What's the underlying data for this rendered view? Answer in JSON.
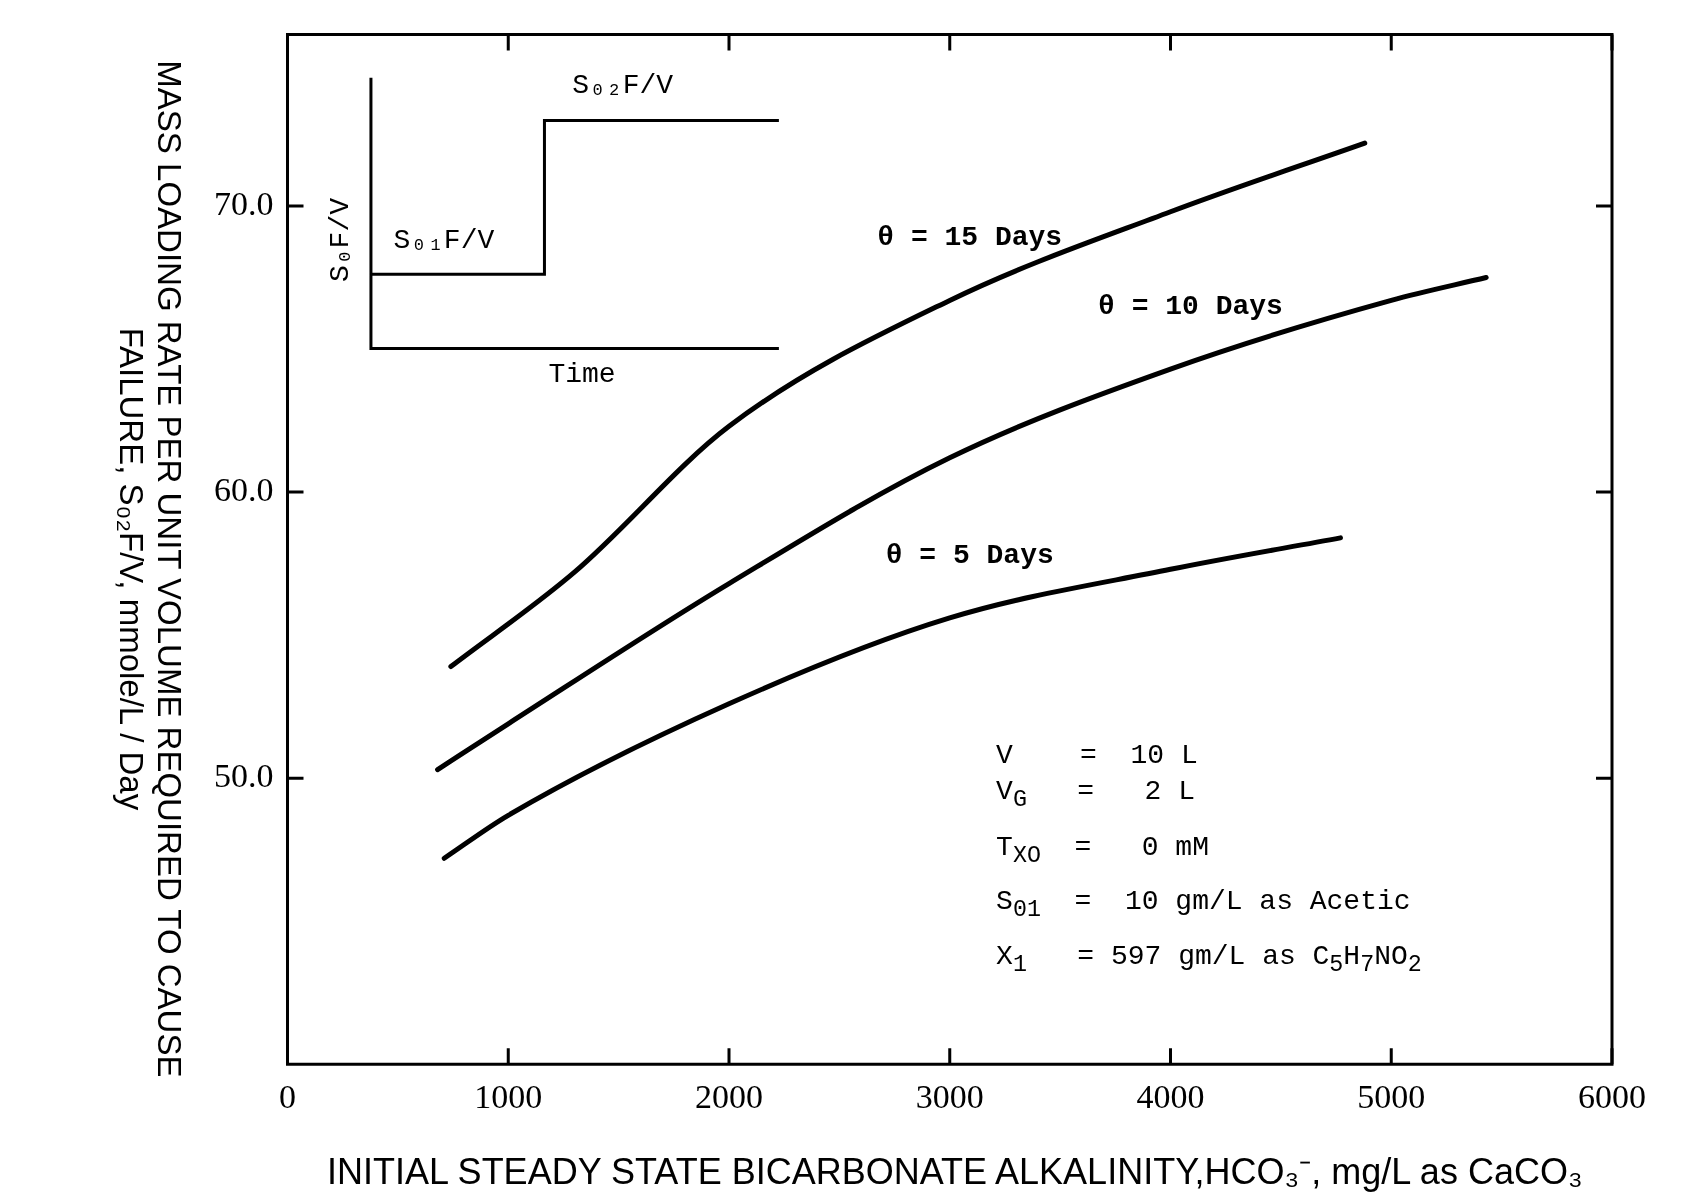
{
  "chart_data": {
    "type": "line",
    "xlabel": "INITIAL STEADY STATE BICARBONATE ALKALINITY,HCO₃⁻, mg/L as CaCO₃",
    "ylabel": "MASS LOADING RATE PER UNIT VOLUME REQUIRED TO CAUSE FAILURE, S₀₂F/V, mmole/L / Day",
    "xlim": [
      0,
      6000
    ],
    "xticks": [
      0,
      1000,
      2000,
      3000,
      4000,
      5000,
      6000
    ],
    "ylim": [
      40,
      76
    ],
    "yticks": [
      {
        "value": 50,
        "label": "50.0"
      },
      {
        "value": 60,
        "label": "60.0"
      },
      {
        "value": 70,
        "label": "70.0"
      }
    ],
    "grid": false,
    "legend": false,
    "marker": "none",
    "line_style": "solid",
    "series": [
      {
        "name": "θ = 15 Days",
        "color": "#000000",
        "x": [
          740,
          1300,
          2000,
          3000,
          4000,
          4880
        ],
        "values": [
          53.9,
          57.2,
          62.3,
          66.7,
          69.8,
          72.2
        ]
      },
      {
        "name": "θ = 10 Days",
        "color": "#000000",
        "x": [
          680,
          1000,
          2000,
          3000,
          4000,
          5000,
          5430
        ],
        "values": [
          50.3,
          51.9,
          56.8,
          61.2,
          64.3,
          66.7,
          67.5
        ]
      },
      {
        "name": "θ = 5 Days",
        "color": "#000000",
        "x": [
          710,
          1000,
          2000,
          3000,
          4000,
          4770
        ],
        "values": [
          47.2,
          48.7,
          52.6,
          55.6,
          57.3,
          58.4
        ]
      }
    ],
    "annotations": [
      "S₀₂F/V",
      "S₀₁F/V",
      "S₀F/V",
      "Time",
      "V    =  10 L",
      "V$_{G}$   =   2 L",
      "T$_{XO}$  =   0 mM",
      "S$_{01}$  =  10 gm/L as Acetic",
      "X$_{1}$   = 597 gm/L as C$_{5}$H$_{7}$NO$_{2}$"
    ]
  }
}
